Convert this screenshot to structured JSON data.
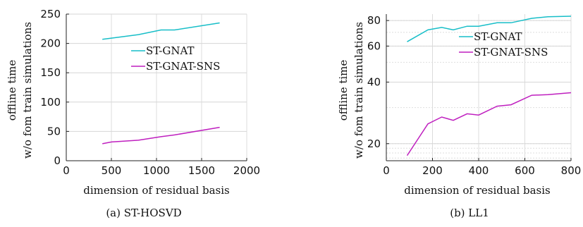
{
  "chart_data": [
    {
      "type": "line",
      "caption": "(a)  ST-HOSVD",
      "xlabel": "dimension of residual basis",
      "ylabel_line1": "offline time",
      "ylabel_line2": "w/o fom train simulations",
      "xlim": [
        0,
        2000
      ],
      "ylim": [
        0,
        250
      ],
      "yscale": "linear",
      "grid": true,
      "legend_position": "top-center",
      "xticks": [
        0,
        500,
        1000,
        1500,
        2000
      ],
      "xtick_labels": [
        "0",
        "500",
        "1000",
        "1500",
        "2000"
      ],
      "yticks": [
        0,
        50,
        100,
        150,
        200,
        250
      ],
      "ytick_labels": [
        "0",
        "50",
        "100",
        "150",
        "200",
        "250"
      ],
      "series": [
        {
          "name": "ST-GNAT",
          "color": "#17bec8",
          "x": [
            400,
            500,
            800,
            1050,
            1200,
            1700
          ],
          "y": [
            207,
            209,
            215,
            223,
            223,
            235
          ]
        },
        {
          "name": "ST-GNAT-SNS",
          "color": "#bf1fbf",
          "x": [
            400,
            500,
            800,
            1050,
            1200,
            1700
          ],
          "y": [
            29,
            32,
            35,
            41,
            44,
            57
          ]
        }
      ]
    },
    {
      "type": "line",
      "caption": "(b)  LL1",
      "xlabel": "dimension of residual basis",
      "ylabel_line1": "offline time",
      "ylabel_line2": "w/o fom train simulations",
      "xlim": [
        0,
        800
      ],
      "ylim": [
        16.5,
        86
      ],
      "yscale": "log",
      "grid": true,
      "legend_position": "top-center",
      "xticks": [
        0,
        200,
        400,
        600,
        800
      ],
      "xtick_labels": [
        "0",
        "200",
        "400",
        "600",
        "800"
      ],
      "yticks": [
        20,
        40,
        60,
        80
      ],
      "ytick_labels": [
        "20",
        "40",
        "60",
        "80"
      ],
      "series": [
        {
          "name": "ST-GNAT",
          "color": "#17bec8",
          "x": [
            90,
            180,
            240,
            290,
            350,
            400,
            480,
            540,
            630,
            700,
            800
          ],
          "y": [
            63,
            72,
            74,
            72,
            75,
            75,
            78,
            78,
            82,
            83.5,
            84
          ]
        },
        {
          "name": "ST-GNAT-SNS",
          "color": "#bf1fbf",
          "x": [
            90,
            180,
            240,
            290,
            350,
            400,
            480,
            540,
            630,
            700,
            800
          ],
          "y": [
            17.5,
            25,
            27,
            26,
            28,
            27.6,
            30.5,
            31,
            34.5,
            34.7,
            35.5
          ]
        }
      ]
    }
  ]
}
